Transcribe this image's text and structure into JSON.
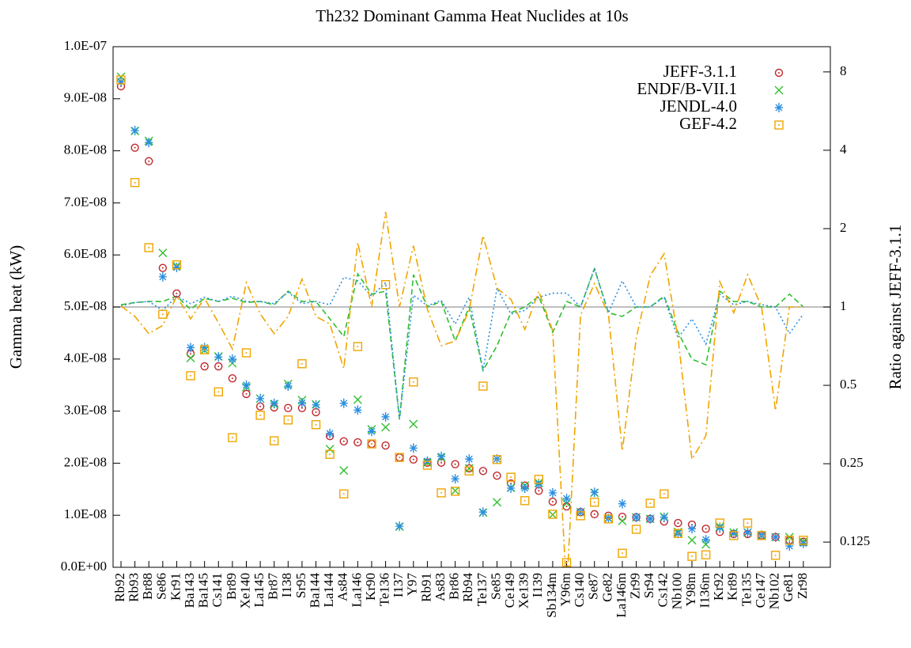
{
  "chart_data": {
    "type": "scatter",
    "title": "Th232 Dominant Gamma Heat Nuclides at 10s",
    "ylabel": "Gamma heat (kW)",
    "y2label": "Ratio against JEFF-3.1.1",
    "categories": [
      "Rb92",
      "Rb93",
      "Br88",
      "Se86",
      "Kr91",
      "Ba143",
      "Ba145",
      "Cs141",
      "Br89",
      "Xe140",
      "La145",
      "Br87",
      "I138",
      "Sr95",
      "Ba144",
      "La144",
      "As84",
      "La146",
      "Kr90",
      "Te136",
      "I137",
      "Y97",
      "Rb91",
      "As83",
      "Br86",
      "Rb94",
      "Te137",
      "Se85",
      "Ce149",
      "Xe139",
      "I139",
      "Sb134m",
      "Y96m",
      "Cs140",
      "Se87",
      "Ge82",
      "La146m",
      "Zr99",
      "Sr94",
      "Cs142",
      "Nb100",
      "Y98m",
      "I136m",
      "Kr92",
      "Kr89",
      "Te135",
      "Ce147",
      "Nb102",
      "Ge81",
      "Zr98"
    ],
    "ylim": [
      0,
      1e-07
    ],
    "yticks": [
      {
        "value": 0,
        "label": "0.0E+00"
      },
      {
        "value": 1e-08,
        "label": "1.0E-08"
      },
      {
        "value": 2e-08,
        "label": "2.0E-08"
      },
      {
        "value": 3e-08,
        "label": "3.0E-08"
      },
      {
        "value": 4e-08,
        "label": "4.0E-08"
      },
      {
        "value": 5e-08,
        "label": "5.0E-08"
      },
      {
        "value": 6e-08,
        "label": "6.0E-08"
      },
      {
        "value": 7e-08,
        "label": "7.0E-08"
      },
      {
        "value": 8e-08,
        "label": "8.0E-08"
      },
      {
        "value": 9e-08,
        "label": "9.0E-08"
      },
      {
        "value": 1e-07,
        "label": "1.0E-07"
      }
    ],
    "y2lim": [
      0.1,
      10
    ],
    "y2ticks": [
      0.125,
      0.25,
      0.5,
      1,
      2,
      4,
      8
    ],
    "y2log": true,
    "y2_refline": 1,
    "legend": "upper right",
    "series": [
      {
        "name": "JEFF-3.1.1",
        "color": "#c0262a",
        "marker": "circle-dot",
        "values": [
          9.24e-08,
          8.06e-08,
          7.8e-08,
          5.75e-08,
          5.26e-08,
          4.1e-08,
          3.86e-08,
          3.86e-08,
          3.63e-08,
          3.33e-08,
          3.09e-08,
          3.07e-08,
          3.06e-08,
          3.06e-08,
          2.98e-08,
          2.52e-08,
          2.42e-08,
          2.4e-08,
          2.37e-08,
          2.34e-08,
          2.11e-08,
          2.07e-08,
          2.01e-08,
          2.01e-08,
          1.98e-08,
          1.9e-08,
          1.85e-08,
          1.76e-08,
          1.61e-08,
          1.57e-08,
          1.47e-08,
          1.26e-08,
          1.17e-08,
          1.06e-08,
          1.02e-08,
          9.9e-09,
          9.7e-09,
          9.6e-09,
          9.3e-09,
          8.8e-09,
          8.5e-09,
          8.2e-09,
          7.4e-09,
          6.8e-09,
          6.4e-09,
          6.4e-09,
          6.1e-09,
          5.8e-09,
          5.2e-09,
          4.9e-09
        ]
      },
      {
        "name": "ENDF/B-VII.1",
        "color": "#2fbf2f",
        "marker": "cross",
        "values": [
          9.42e-08,
          8.38e-08,
          8.19e-08,
          6.04e-08,
          5.79e-08,
          4.02e-08,
          4.17e-08,
          4.05e-08,
          3.92e-08,
          3.46e-08,
          3.24e-08,
          3.13e-08,
          3.52e-08,
          3.21e-08,
          3.13e-08,
          2.27e-08,
          1.86e-08,
          3.22e-08,
          2.65e-08,
          2.69e-08,
          7.8e-09,
          2.75e-08,
          2.01e-08,
          2.11e-08,
          1.47e-08,
          1.9e-08,
          1.05e-08,
          1.25e-08,
          1.53e-08,
          1.57e-08,
          1.62e-08,
          1.01e-08,
          1.23e-08,
          1.06e-08,
          1.43e-08,
          9.4e-09,
          8.9e-09,
          9.6e-09,
          9.3e-09,
          9.7e-09,
          6.8e-09,
          5.2e-09,
          4.4e-09,
          7.8e-09,
          6.7e-09,
          6.7e-09,
          6.1e-09,
          5.8e-09,
          5.8e-09,
          4.9e-09
        ]
      },
      {
        "name": "JENDL-4.0",
        "color": "#2a8fe0",
        "marker": "asterisk",
        "values": [
          9.33e-08,
          8.39e-08,
          8.16e-08,
          5.58e-08,
          5.76e-08,
          4.22e-08,
          4.22e-08,
          4.04e-08,
          4e-08,
          3.5e-08,
          3.24e-08,
          3.15e-08,
          3.48e-08,
          3.16e-08,
          3.12e-08,
          2.57e-08,
          3.15e-08,
          3.02e-08,
          2.61e-08,
          2.89e-08,
          7.9e-09,
          2.29e-08,
          2.04e-08,
          2.13e-08,
          1.7e-08,
          2.08e-08,
          1.06e-08,
          2.08e-08,
          1.52e-08,
          1.52e-08,
          1.6e-08,
          1.43e-08,
          1.32e-08,
          1.06e-08,
          1.44e-08,
          9.4e-09,
          1.22e-08,
          9.6e-09,
          9.3e-09,
          9.6e-09,
          6.5e-09,
          7.4e-09,
          5.3e-09,
          7.6e-09,
          6.5e-09,
          6.7e-09,
          6.2e-09,
          5.8e-09,
          4.1e-09,
          4.6e-09
        ]
      },
      {
        "name": "GEF-4.2",
        "color": "#f0a500",
        "marker": "square-dot",
        "values": [
          9.36e-08,
          7.39e-08,
          6.14e-08,
          4.86e-08,
          5.81e-08,
          3.68e-08,
          4.18e-08,
          3.37e-08,
          2.49e-08,
          4.12e-08,
          2.92e-08,
          2.43e-08,
          2.83e-08,
          3.91e-08,
          2.74e-08,
          2.17e-08,
          1.41e-08,
          4.24e-08,
          2.37e-08,
          5.43e-08,
          2.11e-08,
          3.56e-08,
          1.96e-08,
          1.43e-08,
          1.46e-08,
          1.85e-08,
          3.48e-08,
          2.07e-08,
          1.73e-08,
          1.28e-08,
          1.69e-08,
          1.02e-08,
          9e-10,
          9.9e-09,
          1.25e-08,
          9.3e-09,
          2.7e-09,
          7.3e-09,
          1.23e-08,
          1.41e-08,
          6.5e-09,
          2.1e-09,
          2.4e-09,
          8.5e-09,
          6.1e-09,
          8.5e-09,
          6.1e-09,
          2.3e-09,
          5.2e-09,
          5.2e-09
        ]
      },
      {
        "axis": "y2",
        "color": "#2fbf2f",
        "style": "dashed",
        "values": [
          1.02,
          1.04,
          1.05,
          1.05,
          1.1,
          0.98,
          1.08,
          1.05,
          1.08,
          1.04,
          1.05,
          1.02,
          1.15,
          1.05,
          1.05,
          0.9,
          0.77,
          1.34,
          1.12,
          1.15,
          0.37,
          1.33,
          1.0,
          1.05,
          0.74,
          1.0,
          0.57,
          0.71,
          0.95,
          1.0,
          1.1,
          0.8,
          1.05,
          1.0,
          1.4,
          0.95,
          0.92,
          1.0,
          1.0,
          1.1,
          0.8,
          0.63,
          0.6,
          1.15,
          1.05,
          1.05,
          1.0,
          1.0,
          1.12,
          1.0
        ]
      },
      {
        "axis": "y2",
        "color": "#2a8fe0",
        "style": "dotted",
        "values": [
          1.01,
          1.04,
          1.05,
          0.97,
          1.1,
          1.03,
          1.09,
          1.05,
          1.1,
          1.05,
          1.05,
          1.03,
          1.14,
          1.03,
          1.05,
          1.02,
          1.3,
          1.26,
          1.1,
          1.24,
          0.37,
          1.11,
          1.01,
          1.06,
          0.86,
          1.09,
          0.57,
          1.18,
          0.94,
          0.97,
          1.09,
          1.13,
          1.13,
          1.0,
          1.41,
          0.95,
          1.26,
          1.0,
          1.0,
          1.09,
          0.76,
          0.9,
          0.72,
          1.12,
          1.02,
          1.05,
          1.02,
          1.0,
          0.79,
          0.94
        ]
      },
      {
        "axis": "y2",
        "color": "#f0a500",
        "style": "dashdot",
        "values": [
          1.01,
          0.92,
          0.79,
          0.85,
          1.1,
          0.9,
          1.08,
          0.87,
          0.69,
          1.24,
          0.94,
          0.79,
          0.92,
          1.28,
          0.92,
          0.86,
          0.58,
          1.77,
          1.0,
          2.32,
          1.0,
          1.72,
          0.98,
          0.71,
          0.74,
          0.97,
          1.88,
          1.18,
          1.07,
          0.82,
          1.15,
          0.81,
          0.08,
          0.93,
          1.23,
          0.94,
          0.28,
          0.76,
          1.32,
          1.6,
          0.76,
          0.26,
          0.32,
          1.25,
          0.95,
          1.33,
          1.0,
          0.4,
          1.0,
          1.0
        ]
      }
    ]
  }
}
